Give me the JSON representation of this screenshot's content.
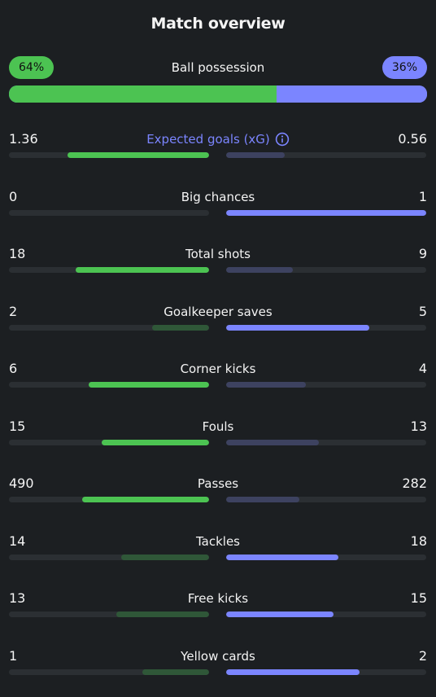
{
  "title": "Match overview",
  "possession": {
    "label": "Ball possession",
    "home_text": "64%",
    "away_text": "36%",
    "home_fraction": 0.64,
    "away_fraction": 0.36
  },
  "colors": {
    "home": "#4cc352",
    "away": "#7b85ff",
    "home_muted": "#2f5738",
    "away_muted": "#3d4260",
    "track": "#2b2f33",
    "background": "#1c1f22"
  },
  "stats": [
    {
      "label": "Expected goals (xG)",
      "home": "1.36",
      "away": "0.56",
      "home_value": 1.36,
      "away_value": 0.56,
      "info": true
    },
    {
      "label": "Big chances",
      "home": "0",
      "away": "1",
      "home_value": 0,
      "away_value": 1
    },
    {
      "label": "Total shots",
      "home": "18",
      "away": "9",
      "home_value": 18,
      "away_value": 9
    },
    {
      "label": "Goalkeeper saves",
      "home": "2",
      "away": "5",
      "home_value": 2,
      "away_value": 5
    },
    {
      "label": "Corner kicks",
      "home": "6",
      "away": "4",
      "home_value": 6,
      "away_value": 4
    },
    {
      "label": "Fouls",
      "home": "15",
      "away": "13",
      "home_value": 15,
      "away_value": 13
    },
    {
      "label": "Passes",
      "home": "490",
      "away": "282",
      "home_value": 490,
      "away_value": 282
    },
    {
      "label": "Tackles",
      "home": "14",
      "away": "18",
      "home_value": 14,
      "away_value": 18
    },
    {
      "label": "Free kicks",
      "home": "13",
      "away": "15",
      "home_value": 13,
      "away_value": 15
    },
    {
      "label": "Yellow cards",
      "home": "1",
      "away": "2",
      "home_value": 1,
      "away_value": 2
    }
  ]
}
